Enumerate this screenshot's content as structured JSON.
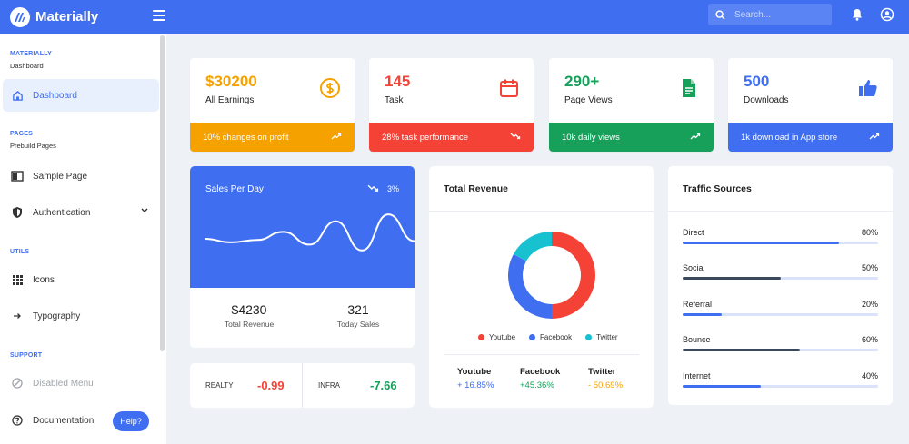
{
  "header": {
    "app_name": "Materially",
    "search_placeholder": "Search...",
    "icons": [
      "logo-icon",
      "menu-icon",
      "search-icon",
      "bell-icon",
      "user-icon"
    ],
    "accent": "#3f6ef0"
  },
  "sidebar": {
    "section_materially": "MATERIALLY",
    "section_materially_sub": "Dashboard",
    "dashboard": "Dashboard",
    "section_pages": "PAGES",
    "section_pages_sub": "Prebuild Pages",
    "sample_page": "Sample Page",
    "authentication": "Authentication",
    "section_utils": "UTILS",
    "icons": "Icons",
    "typography": "Typography",
    "section_support": "SUPPORT",
    "disabled_menu": "Disabled Menu",
    "documentation": "Documentation",
    "help": "Help?"
  },
  "stats": [
    {
      "value": "$30200",
      "label": "All Earnings",
      "footer": "10% changes on profit",
      "color": "#f5a100",
      "icon": "dollar-icon",
      "trend": "up"
    },
    {
      "value": "145",
      "label": "Task",
      "footer": "28% task performance",
      "color": "#f44336",
      "icon": "calendar-icon",
      "trend": "down"
    },
    {
      "value": "290+",
      "label": "Page Views",
      "footer": "10k daily views",
      "color": "#16a05a",
      "icon": "document-icon",
      "trend": "up"
    },
    {
      "value": "500",
      "label": "Downloads",
      "footer": "1k download in App store",
      "color": "#3f6ef0",
      "icon": "thumbs-up-icon",
      "trend": "up"
    }
  ],
  "sales": {
    "title": "Sales Per Day",
    "change": "3%",
    "revenue_value": "$4230",
    "revenue_label": "Total Revenue",
    "sales_value": "321",
    "sales_label": "Today Sales"
  },
  "markets": [
    {
      "name": "REALTY",
      "value": "-0.99",
      "color": "#f44336"
    },
    {
      "name": "INFRA",
      "value": "-7.66",
      "color": "#16a05a"
    }
  ],
  "revenue": {
    "title": "Total Revenue",
    "legend": [
      {
        "name": "Youtube",
        "color": "#f44336"
      },
      {
        "name": "Facebook",
        "color": "#3f6ef0"
      },
      {
        "name": "Twitter",
        "color": "#17c1d0"
      }
    ],
    "stats": [
      {
        "name": "Youtube",
        "value": "+ 16.85%",
        "color": "#3f6ef0"
      },
      {
        "name": "Facebook",
        "value": "+45.36%",
        "color": "#16a05a"
      },
      {
        "name": "Twitter",
        "value": "- 50.69%",
        "color": "#f5a100"
      }
    ]
  },
  "traffic": {
    "title": "Traffic Sources",
    "rows": [
      {
        "label": "Direct",
        "pct": "80%",
        "value": 80,
        "color": "#3f6ef0"
      },
      {
        "label": "Social",
        "pct": "50%",
        "value": 50,
        "color": "#3a4a5c"
      },
      {
        "label": "Referral",
        "pct": "20%",
        "value": 20,
        "color": "#3f6ef0"
      },
      {
        "label": "Bounce",
        "pct": "60%",
        "value": 60,
        "color": "#3a4a5c"
      },
      {
        "label": "Internet",
        "pct": "40%",
        "value": 40,
        "color": "#3f6ef0"
      }
    ]
  },
  "chart_data": [
    {
      "type": "line",
      "title": "Sales Per Day",
      "values": [
        50,
        44,
        48,
        62,
        40,
        80,
        30,
        92,
        46
      ],
      "ylim": [
        0,
        100
      ],
      "axes": false
    },
    {
      "type": "pie",
      "title": "Total Revenue",
      "categories": [
        "Youtube",
        "Facebook",
        "Twitter"
      ],
      "values": [
        50,
        33,
        17
      ],
      "colors": [
        "#f44336",
        "#3f6ef0",
        "#17c1d0"
      ],
      "donut": true
    }
  ]
}
